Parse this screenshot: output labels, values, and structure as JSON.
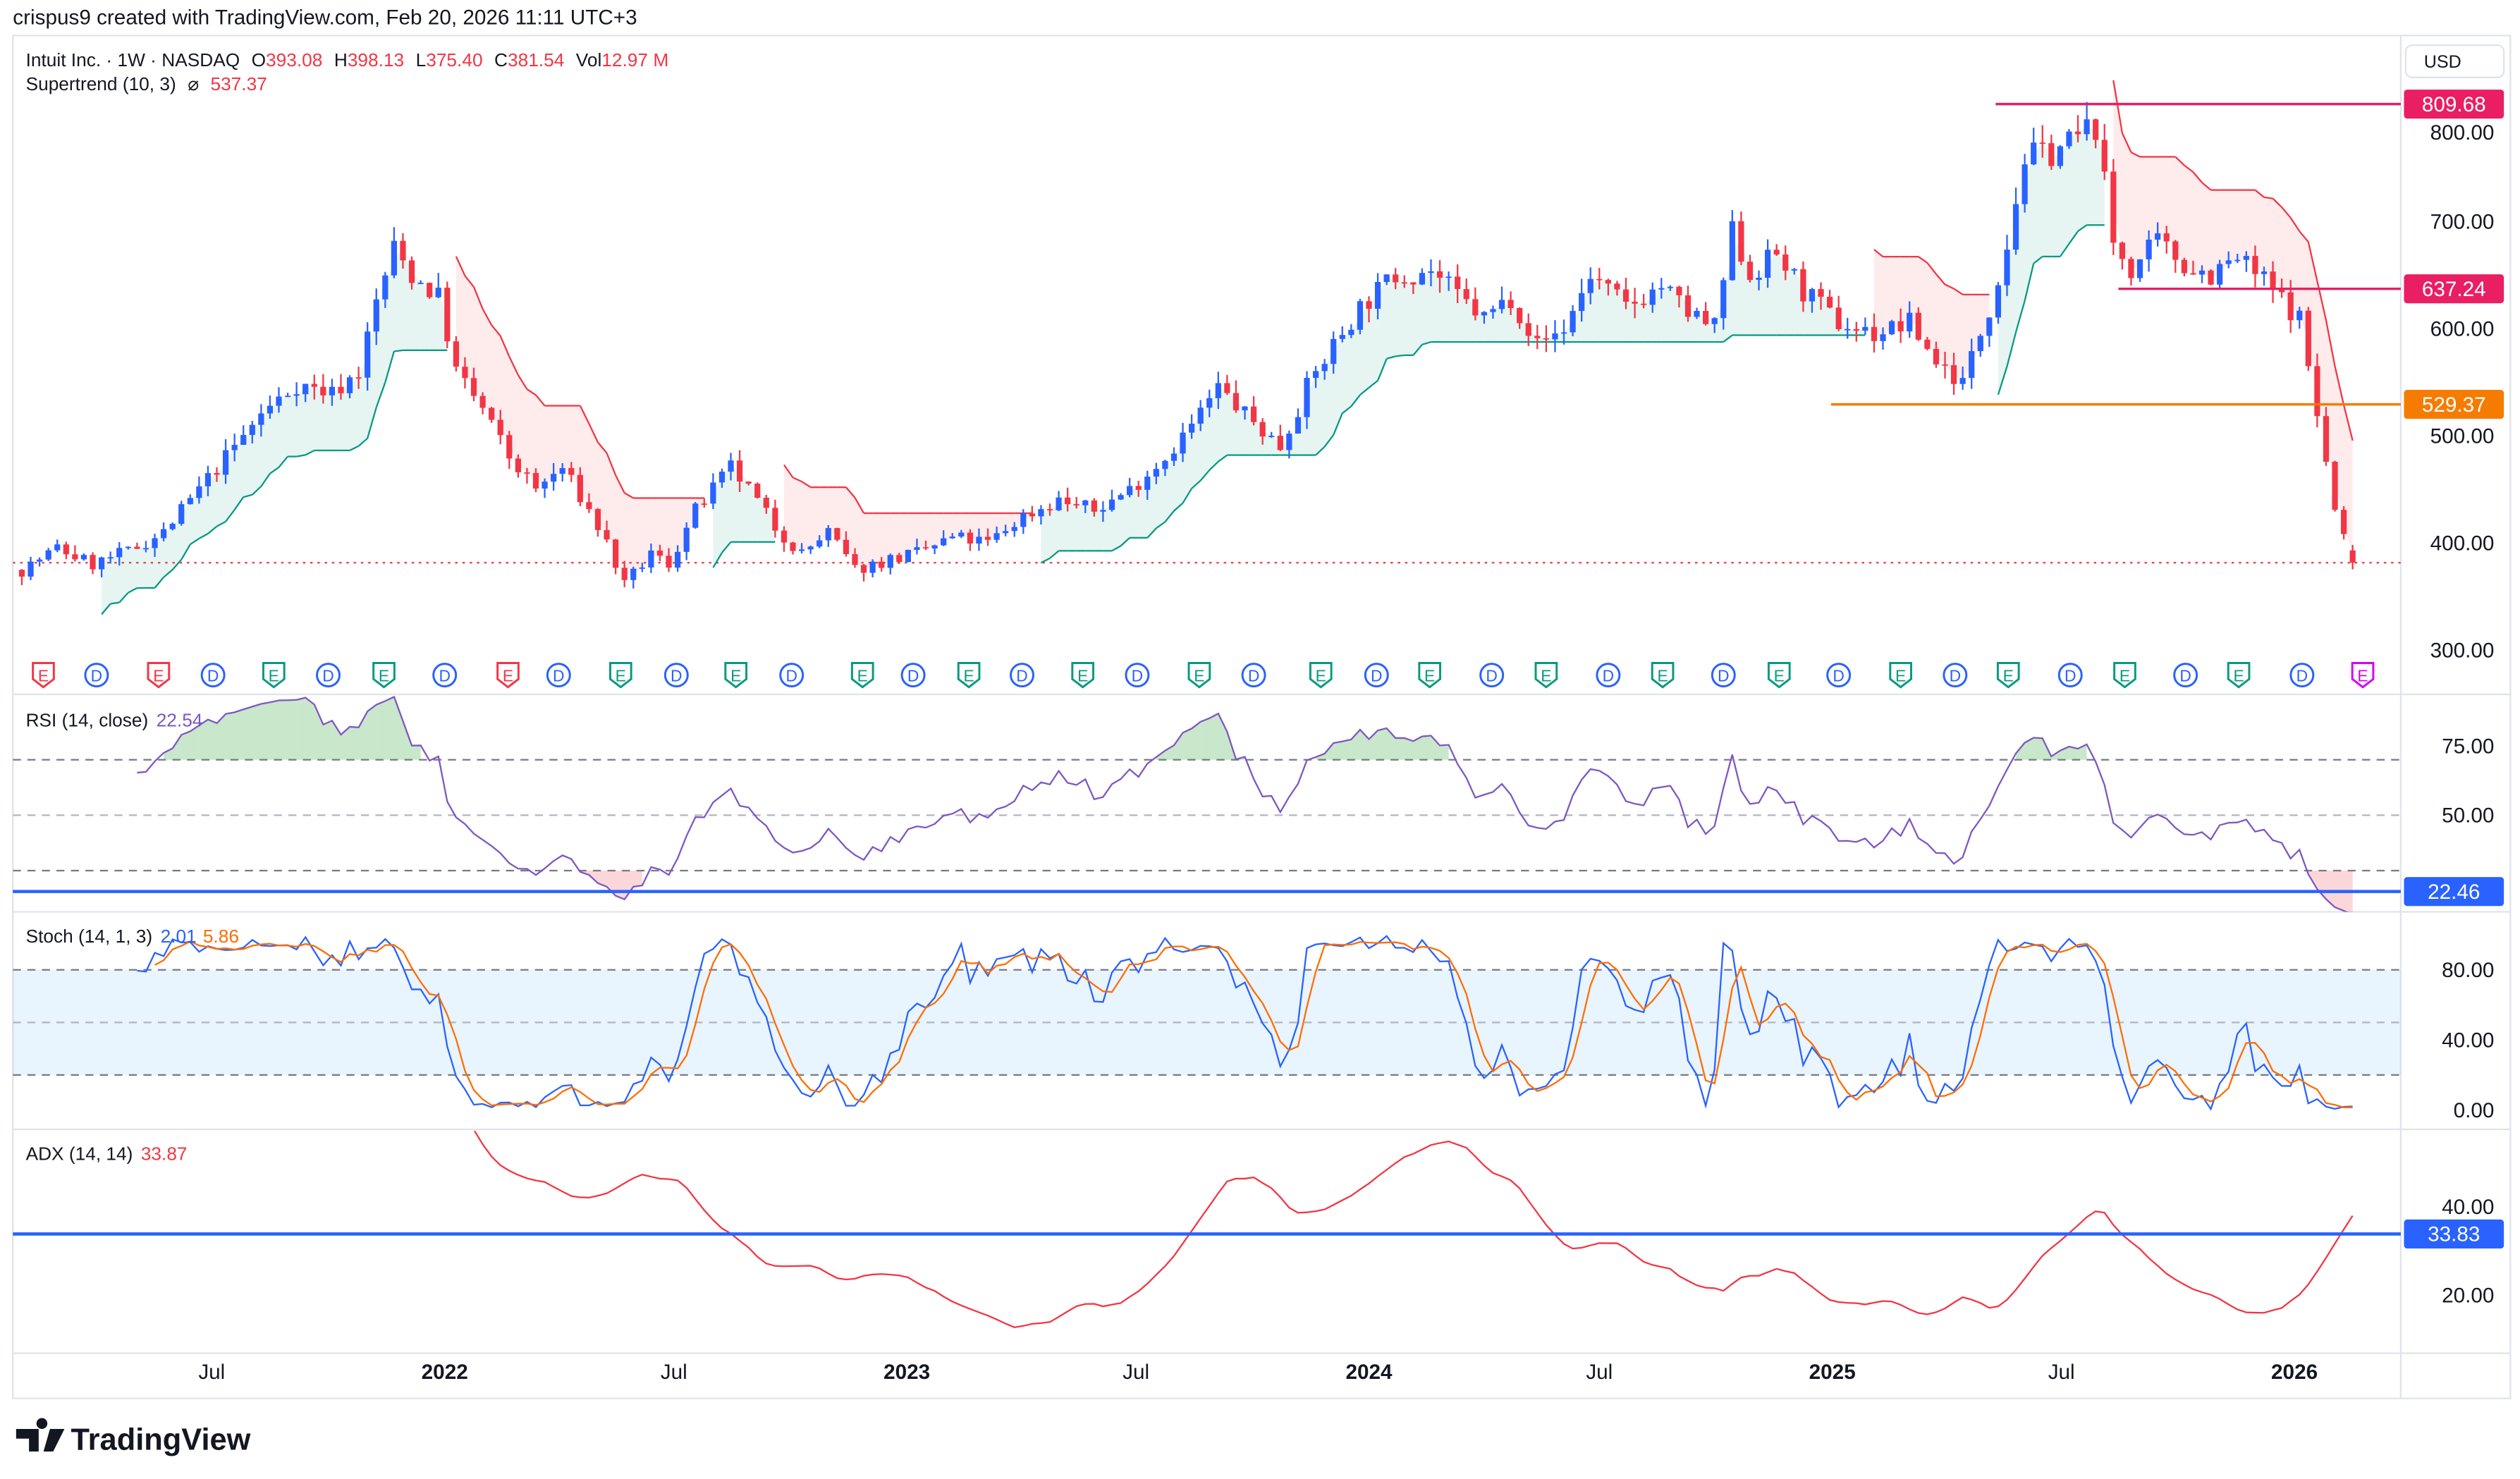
{
  "header": {
    "text": "crispus9 created with TradingView.com, Feb 20, 2026 11:11 UTC+3"
  },
  "legend": {
    "symbol": "Intuit Inc. · 1W · NASDAQ",
    "o_label": "O",
    "o": "393.08",
    "h_label": "H",
    "h": "398.13",
    "l_label": "L",
    "l": "375.40",
    "c_label": "C",
    "c": "381.54",
    "vol_label": "Vol",
    "vol": "12.97 M",
    "supertrend_label": "Supertrend (10, 3)",
    "supertrend_icon": "hidden-eye-slash-icon",
    "supertrend_symbol": "⌀",
    "supertrend_value": "537.37"
  },
  "currency": "USD",
  "colors": {
    "up": "#2962ff",
    "down": "#f23645",
    "st_up": "#089981",
    "st_down": "#f23645",
    "rsi": "#7e57c2",
    "stoch_k": "#2962ff",
    "stoch_d": "#ff6d00",
    "adx": "#f23645",
    "hline": "#2962ff",
    "level_pink": "#e91e63",
    "level_orange": "#f57c00"
  },
  "chart_data": [
    {
      "type": "candlestick",
      "title": "Intuit Inc. · 1W · NASDAQ",
      "ylim": [
        280,
        830
      ],
      "y_ticks": [
        "300.00",
        "400.00",
        "500.00",
        "600.00",
        "700.00",
        "800.00"
      ],
      "x_ticks": [
        {
          "label": "Jul",
          "date": "2021-07-01"
        },
        {
          "label": "2022",
          "date": "2022-01-01",
          "bold": true
        },
        {
          "label": "Jul",
          "date": "2022-07-01"
        },
        {
          "label": "2023",
          "date": "2023-01-01",
          "bold": true
        },
        {
          "label": "Jul",
          "date": "2023-07-01"
        },
        {
          "label": "2024",
          "date": "2024-01-01",
          "bold": true
        },
        {
          "label": "Jul",
          "date": "2024-07-01"
        },
        {
          "label": "2025",
          "date": "2025-01-01",
          "bold": true
        },
        {
          "label": "Jul",
          "date": "2025-07-01"
        },
        {
          "label": "2026",
          "date": "2026-01-01",
          "bold": true
        }
      ],
      "last_bar": {
        "open": 393.08,
        "high": 398.13,
        "low": 375.4,
        "close": 381.54
      },
      "approx_closes": [
        [
          "2021-02-01",
          375
        ],
        [
          "2021-03-01",
          395
        ],
        [
          "2021-03-29",
          380
        ],
        [
          "2021-04-26",
          392
        ],
        [
          "2021-05-24",
          410
        ],
        [
          "2021-06-21",
          450
        ],
        [
          "2021-07-12",
          480
        ],
        [
          "2021-08-09",
          520
        ],
        [
          "2021-09-06",
          548
        ],
        [
          "2021-10-04",
          540
        ],
        [
          "2021-10-25",
          560
        ],
        [
          "2021-11-08",
          625
        ],
        [
          "2021-11-22",
          675
        ],
        [
          "2021-12-06",
          650
        ],
        [
          "2021-12-27",
          630
        ],
        [
          "2022-01-10",
          560
        ],
        [
          "2022-01-31",
          525
        ],
        [
          "2022-02-21",
          480
        ],
        [
          "2022-03-14",
          450
        ],
        [
          "2022-04-04",
          470
        ],
        [
          "2022-04-25",
          430
        ],
        [
          "2022-05-09",
          400
        ],
        [
          "2022-05-23",
          360
        ],
        [
          "2022-06-13",
          390
        ],
        [
          "2022-06-27",
          380
        ],
        [
          "2022-07-18",
          430
        ],
        [
          "2022-08-15",
          470
        ],
        [
          "2022-08-29",
          450
        ],
        [
          "2022-09-19",
          415
        ],
        [
          "2022-10-10",
          390
        ],
        [
          "2022-10-31",
          410
        ],
        [
          "2022-11-21",
          375
        ],
        [
          "2022-12-19",
          385
        ],
        [
          "2023-01-09",
          390
        ],
        [
          "2023-02-06",
          405
        ],
        [
          "2023-03-06",
          400
        ],
        [
          "2023-04-03",
          425
        ],
        [
          "2023-05-01",
          440
        ],
        [
          "2023-05-29",
          430
        ],
        [
          "2023-06-26",
          450
        ],
        [
          "2023-07-24",
          480
        ],
        [
          "2023-08-14",
          510
        ],
        [
          "2023-09-04",
          545
        ],
        [
          "2023-09-25",
          520
        ],
        [
          "2023-10-23",
          490
        ],
        [
          "2023-11-13",
          545
        ],
        [
          "2023-12-04",
          585
        ],
        [
          "2023-12-25",
          620
        ],
        [
          "2024-01-22",
          650
        ],
        [
          "2024-02-19",
          655
        ],
        [
          "2024-03-11",
          630
        ],
        [
          "2024-04-01",
          610
        ],
        [
          "2024-04-22",
          630
        ],
        [
          "2024-05-13",
          585
        ],
        [
          "2024-06-03",
          600
        ],
        [
          "2024-06-24",
          650
        ],
        [
          "2024-07-22",
          620
        ],
        [
          "2024-08-19",
          640
        ],
        [
          "2024-09-09",
          615
        ],
        [
          "2024-09-30",
          600
        ],
        [
          "2024-10-14",
          690
        ],
        [
          "2024-10-28",
          650
        ],
        [
          "2024-11-18",
          670
        ],
        [
          "2024-12-09",
          635
        ],
        [
          "2025-01-06",
          605
        ],
        [
          "2025-02-03",
          595
        ],
        [
          "2025-03-03",
          605
        ],
        [
          "2025-03-24",
          570
        ],
        [
          "2025-04-14",
          550
        ],
        [
          "2025-05-05",
          620
        ],
        [
          "2025-05-19",
          680
        ],
        [
          "2025-06-02",
          760
        ],
        [
          "2025-06-23",
          765
        ],
        [
          "2025-07-14",
          780
        ],
        [
          "2025-07-28",
          790
        ],
        [
          "2025-08-11",
          680
        ],
        [
          "2025-08-25",
          655
        ],
        [
          "2025-09-15",
          680
        ],
        [
          "2025-10-06",
          660
        ],
        [
          "2025-10-27",
          650
        ],
        [
          "2025-11-17",
          665
        ],
        [
          "2025-12-08",
          645
        ],
        [
          "2026-01-05",
          610
        ],
        [
          "2026-01-19",
          520
        ],
        [
          "2026-02-02",
          430
        ],
        [
          "2026-02-16",
          381.54
        ]
      ],
      "supertrend": {
        "label": "Supertrend (10, 3)",
        "value": 537.37
      },
      "price_levels": [
        {
          "value": 809.68,
          "label": "809.68",
          "color": "#e91e63",
          "from": "2025-05-10"
        },
        {
          "value": 637.24,
          "label": "637.24",
          "color": "#e91e63",
          "from": "2025-08-15"
        },
        {
          "value": 529.37,
          "label": "529.37",
          "color": "#f57c00",
          "from": "2024-12-31"
        }
      ],
      "current_price": 381.54,
      "events": [
        {
          "k": "E",
          "s": "miss",
          "d": "2021-02-18"
        },
        {
          "k": "D",
          "d": "2021-04-01"
        },
        {
          "k": "E",
          "s": "miss",
          "d": "2021-05-20"
        },
        {
          "k": "D",
          "d": "2021-07-02"
        },
        {
          "k": "E",
          "s": "beat",
          "d": "2021-08-19"
        },
        {
          "k": "D",
          "d": "2021-10-01"
        },
        {
          "k": "E",
          "s": "beat",
          "d": "2021-11-14"
        },
        {
          "k": "D",
          "d": "2022-01-01"
        },
        {
          "k": "E",
          "s": "miss",
          "d": "2022-02-20"
        },
        {
          "k": "D",
          "d": "2022-04-01"
        },
        {
          "k": "E",
          "s": "beat",
          "d": "2022-05-20"
        },
        {
          "k": "D",
          "d": "2022-07-03"
        },
        {
          "k": "E",
          "s": "beat",
          "d": "2022-08-19"
        },
        {
          "k": "D",
          "d": "2022-10-02"
        },
        {
          "k": "E",
          "s": "beat",
          "d": "2022-11-27"
        },
        {
          "k": "D",
          "d": "2023-01-06"
        },
        {
          "k": "E",
          "s": "beat",
          "d": "2023-02-19"
        },
        {
          "k": "D",
          "d": "2023-04-02"
        },
        {
          "k": "E",
          "s": "beat",
          "d": "2023-05-20"
        },
        {
          "k": "D",
          "d": "2023-07-02"
        },
        {
          "k": "E",
          "s": "beat",
          "d": "2023-08-20"
        },
        {
          "k": "D",
          "d": "2023-10-02"
        },
        {
          "k": "E",
          "s": "beat",
          "d": "2023-11-24"
        },
        {
          "k": "D",
          "d": "2024-01-07"
        },
        {
          "k": "E",
          "s": "beat",
          "d": "2024-02-18"
        },
        {
          "k": "D",
          "d": "2024-04-07"
        },
        {
          "k": "E",
          "s": "beat",
          "d": "2024-05-20"
        },
        {
          "k": "D",
          "d": "2024-07-08"
        },
        {
          "k": "E",
          "s": "beat",
          "d": "2024-08-20"
        },
        {
          "k": "D",
          "d": "2024-10-07"
        },
        {
          "k": "E",
          "s": "beat",
          "d": "2024-11-20"
        },
        {
          "k": "D",
          "d": "2025-01-06"
        },
        {
          "k": "E",
          "s": "beat",
          "d": "2025-02-24"
        },
        {
          "k": "D",
          "d": "2025-04-08"
        },
        {
          "k": "E",
          "s": "beat",
          "d": "2025-05-20"
        },
        {
          "k": "D",
          "d": "2025-07-08"
        },
        {
          "k": "E",
          "s": "beat",
          "d": "2025-08-20"
        },
        {
          "k": "D",
          "d": "2025-10-07"
        },
        {
          "k": "E",
          "s": "beat",
          "d": "2025-11-18"
        },
        {
          "k": "D",
          "d": "2026-01-07"
        },
        {
          "k": "E",
          "s": "upcoming",
          "d": "2026-02-24"
        }
      ]
    },
    {
      "type": "line",
      "title": "RSI (14, close)",
      "value": "22.54",
      "y_ticks": [
        "75.00",
        "50.00"
      ],
      "bands": [
        70,
        50,
        30
      ],
      "hline": {
        "value": 22.46,
        "label": "22.46"
      }
    },
    {
      "type": "line",
      "title": "Stoch (14, 1, 3)",
      "k_value": "2.01",
      "d_value": "5.86",
      "y_ticks": [
        "80.00",
        "40.00",
        "0.00"
      ],
      "bands": [
        80,
        50,
        20
      ]
    },
    {
      "type": "line",
      "title": "ADX (14, 14)",
      "value": "33.87",
      "y_ticks": [
        "40.00",
        "20.00"
      ],
      "hline": {
        "value": 33.83,
        "label": "33.83"
      }
    }
  ],
  "footer": {
    "logo_text": "TradingView"
  }
}
